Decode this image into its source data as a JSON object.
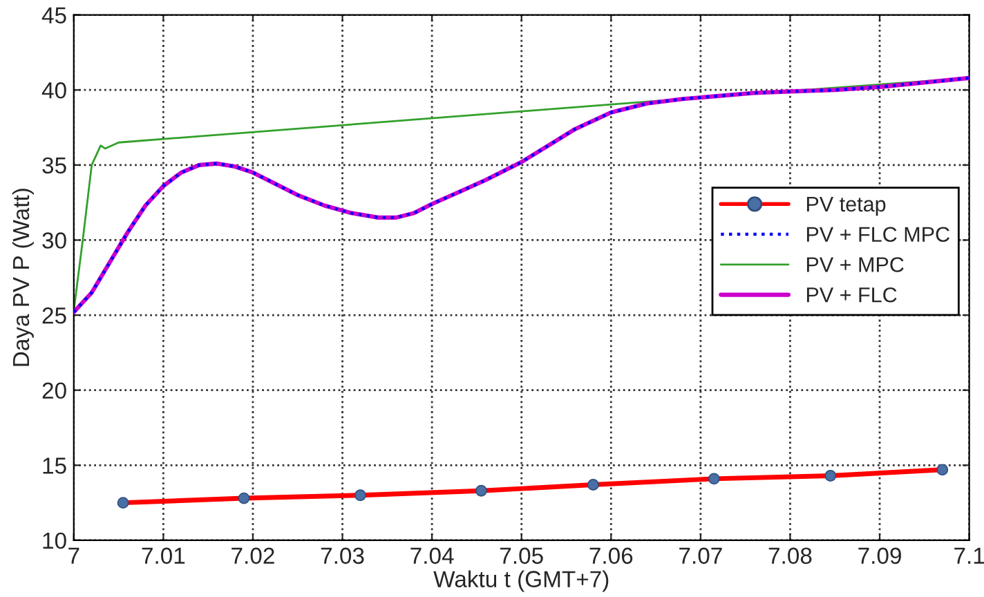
{
  "chart_data": {
    "type": "line",
    "xlabel": "Waktu t (GMT+7)",
    "ylabel": "Daya PV P (Watt)",
    "xlim": [
      7,
      7.1
    ],
    "xticks": [
      7,
      7.01,
      7.02,
      7.03,
      7.04,
      7.05,
      7.06,
      7.07,
      7.08,
      7.09,
      7.1
    ],
    "ylim": [
      10,
      45
    ],
    "yticks": [
      10,
      15,
      20,
      25,
      30,
      35,
      40,
      45
    ],
    "grid": true,
    "legend": "right",
    "series": [
      {
        "name": "PV tetap",
        "color": "#ff0000",
        "marker": "circle",
        "colors": [
          "#4a6fa5",
          "#4a6fa5",
          "#4a6fa5",
          "#4a6fa5",
          "#4a6fa5",
          "#4a6fa5",
          "#4a6fa5",
          "#4a6fa5"
        ],
        "x": [
          7.0055,
          7.019,
          7.032,
          7.0455,
          7.058,
          7.0715,
          7.0845,
          7.097
        ],
        "values": [
          12.5,
          12.8,
          13.0,
          13.3,
          13.7,
          14.1,
          14.3,
          14.7
        ]
      },
      {
        "name": "PV + FLC MPC",
        "color": "#0000ff",
        "line_style": "dotted",
        "x": [
          7,
          7.002,
          7.004,
          7.006,
          7.008,
          7.01,
          7.012,
          7.014,
          7.016,
          7.018,
          7.02,
          7.022,
          7.025,
          7.028,
          7.031,
          7.034,
          7.036,
          7.038,
          7.04,
          7.043,
          7.046,
          7.05,
          7.053,
          7.056,
          7.06,
          7.064,
          7.068,
          7.072,
          7.076,
          7.08,
          7.085,
          7.09,
          7.095,
          7.1
        ],
        "values": [
          25.2,
          26.5,
          28.5,
          30.5,
          32.3,
          33.6,
          34.5,
          35.0,
          35.1,
          34.9,
          34.5,
          33.9,
          33.0,
          32.3,
          31.8,
          31.5,
          31.5,
          31.8,
          32.4,
          33.2,
          34.0,
          35.2,
          36.3,
          37.4,
          38.5,
          39.1,
          39.4,
          39.6,
          39.8,
          39.9,
          40.0,
          40.2,
          40.5,
          40.8
        ]
      },
      {
        "name": "PV + MPC",
        "color": "#33a02c",
        "x": [
          7,
          7.001,
          7.002,
          7.003,
          7.0035,
          7.005,
          7.07,
          7.1
        ],
        "values": [
          25.3,
          30,
          35,
          36.3,
          36.1,
          36.5,
          39.5,
          40.8
        ]
      },
      {
        "name": "PV + FLC",
        "color": "#cc00cc",
        "x": [
          7,
          7.002,
          7.004,
          7.006,
          7.008,
          7.01,
          7.012,
          7.014,
          7.016,
          7.018,
          7.02,
          7.022,
          7.025,
          7.028,
          7.031,
          7.034,
          7.036,
          7.038,
          7.04,
          7.043,
          7.046,
          7.05,
          7.053,
          7.056,
          7.06,
          7.064,
          7.068,
          7.072,
          7.076,
          7.08,
          7.085,
          7.09,
          7.095,
          7.1
        ],
        "values": [
          25.2,
          26.5,
          28.5,
          30.5,
          32.3,
          33.6,
          34.5,
          35.0,
          35.1,
          34.9,
          34.5,
          33.9,
          33.0,
          32.3,
          31.8,
          31.5,
          31.5,
          31.8,
          32.4,
          33.2,
          34.0,
          35.2,
          36.3,
          37.4,
          38.5,
          39.1,
          39.4,
          39.6,
          39.8,
          39.9,
          40.0,
          40.2,
          40.5,
          40.8
        ]
      }
    ]
  }
}
